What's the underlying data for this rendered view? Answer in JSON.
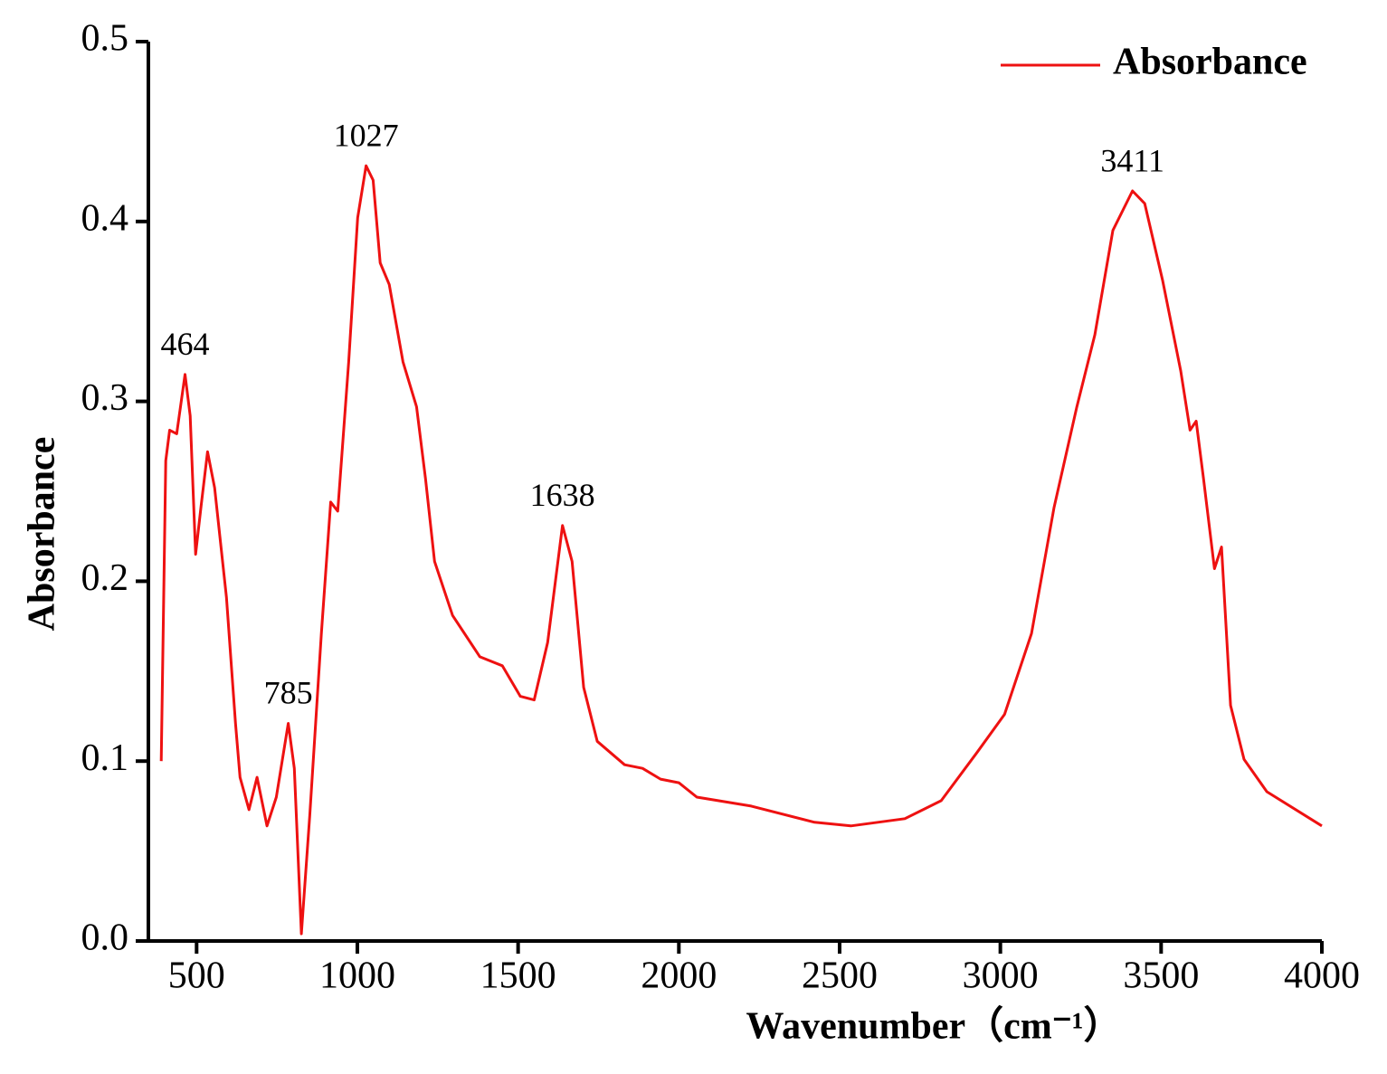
{
  "chart_data": {
    "type": "line",
    "xlabel": "Wavenumber（cm⁻¹）",
    "ylabel": "Absorbance",
    "xlim": [
      350,
      4000
    ],
    "ylim": [
      0,
      0.5
    ],
    "xticks": [
      500,
      1000,
      1500,
      2000,
      2500,
      3000,
      3500,
      4000
    ],
    "yticks": [
      {
        "value": 0,
        "label": "0.0"
      },
      0.1,
      0.2,
      0.3,
      0.4,
      0.5
    ],
    "legend": "upper right",
    "series": [
      {
        "name": "Absorbance",
        "color": "#ee1111",
        "x": [
          390,
          404,
          416,
          438,
          464,
          480,
          497,
          514,
          534,
          556,
          593,
          621,
          635,
          663,
          688,
          719,
          748,
          785,
          804,
          826,
          852,
          888,
          917,
          939,
          973,
          1001,
          1027,
          1049,
          1071,
          1099,
          1142,
          1184,
          1212,
          1240,
          1296,
          1381,
          1451,
          1507,
          1550,
          1592,
          1638,
          1668,
          1704,
          1746,
          1831,
          1887,
          1943,
          2000,
          2056,
          2225,
          2422,
          2535,
          2703,
          2816,
          2928,
          3013,
          3097,
          3167,
          3238,
          3294,
          3350,
          3411,
          3449,
          3505,
          3561,
          3590,
          3609,
          3632,
          3666,
          3688,
          3716,
          3758,
          3829,
          4000
        ],
        "values": [
          0.1,
          0.267,
          0.284,
          0.282,
          0.315,
          0.292,
          0.215,
          0.242,
          0.272,
          0.252,
          0.191,
          0.121,
          0.091,
          0.073,
          0.091,
          0.064,
          0.08,
          0.121,
          0.096,
          0.004,
          0.07,
          0.171,
          0.244,
          0.239,
          0.322,
          0.402,
          0.431,
          0.423,
          0.377,
          0.365,
          0.322,
          0.297,
          0.257,
          0.211,
          0.181,
          0.158,
          0.153,
          0.136,
          0.134,
          0.166,
          0.231,
          0.211,
          0.141,
          0.111,
          0.098,
          0.096,
          0.09,
          0.088,
          0.08,
          0.075,
          0.066,
          0.064,
          0.068,
          0.078,
          0.105,
          0.126,
          0.171,
          0.241,
          0.297,
          0.337,
          0.395,
          0.417,
          0.41,
          0.367,
          0.317,
          0.284,
          0.289,
          0.257,
          0.207,
          0.219,
          0.131,
          0.101,
          0.083,
          0.064
        ]
      }
    ],
    "annotations": [
      {
        "text": "464",
        "x": 464,
        "y": 0.315
      },
      {
        "text": "785",
        "x": 785,
        "y": 0.121
      },
      {
        "text": "1027",
        "x": 1027,
        "y": 0.431
      },
      {
        "text": "1638",
        "x": 1638,
        "y": 0.231
      },
      {
        "text": "3411",
        "x": 3411,
        "y": 0.417
      }
    ]
  }
}
